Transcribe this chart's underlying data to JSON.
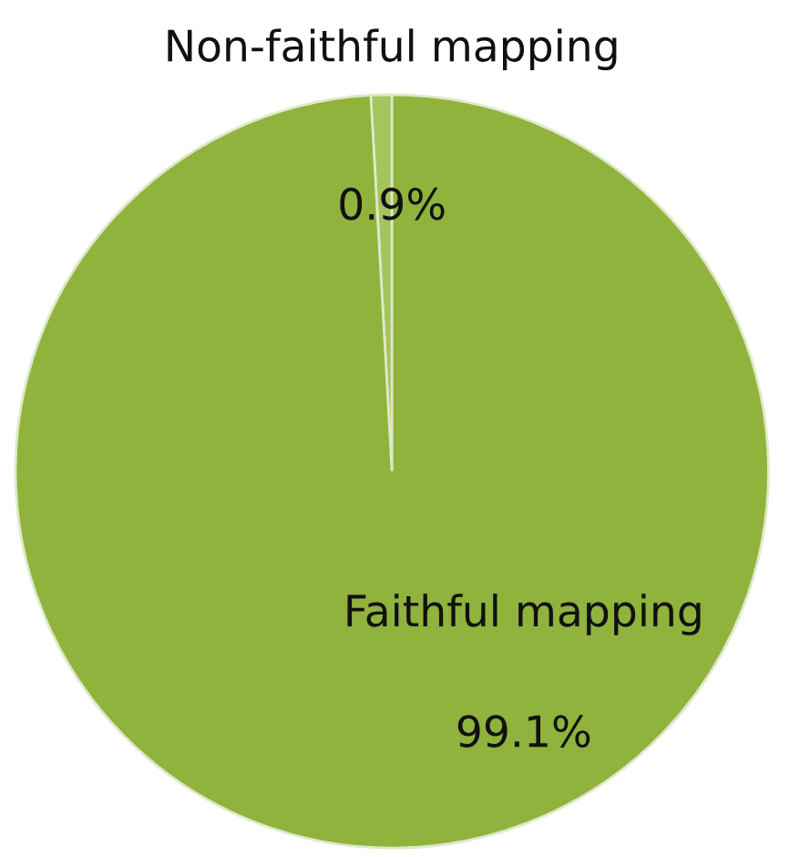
{
  "chart_data": {
    "type": "pie",
    "categories": [
      "Non-faithful mapping",
      "Faithful mapping"
    ],
    "values": [
      0.9,
      99.1
    ],
    "colors": [
      "#a4c45c",
      "#8fb33c"
    ],
    "value_labels": [
      "0.9%",
      "99.1%"
    ]
  }
}
